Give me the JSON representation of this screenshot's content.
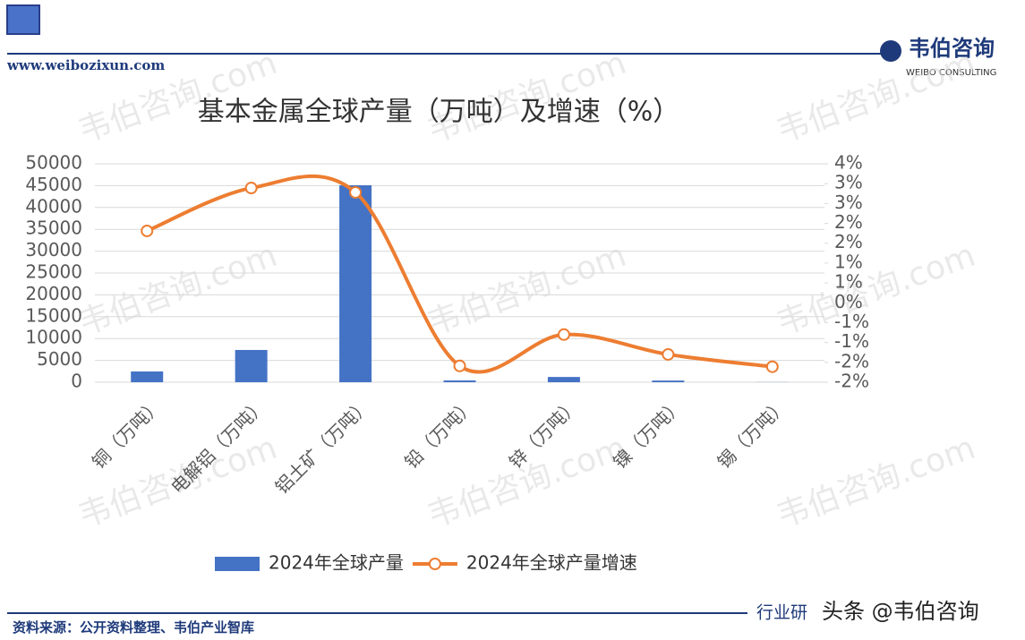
{
  "site": "www.weibozixun.com",
  "brand": {
    "name": "韦伯咨询",
    "sub": "WEIBO CONSULTING"
  },
  "watermark": "韦伯咨询.com",
  "source": "资料来源：公开资料整理、韦伯产业智库",
  "footer_right": "行业研",
  "overlay": "头条 @韦伯咨询",
  "chart_data": {
    "type": "bar",
    "title": "基本金属全球产量（万吨）及增速（%）",
    "categories": [
      "铜（万吨）",
      "电解铝（万吨）",
      "铝土矿（万吨）",
      "铅（万吨）",
      "锌（万吨）",
      "镍（万吨）",
      "锡（万吨）"
    ],
    "series": [
      {
        "name": "2024年全球产量",
        "type": "bar",
        "color": "#4472c4",
        "values": [
          2460,
          7380,
          45080,
          400,
          1200,
          380,
          30
        ]
      },
      {
        "name": "2024年全球产量增速",
        "type": "line",
        "axis": "y2",
        "color": "#ed7d31",
        "values": [
          1.81,
          2.89,
          2.78,
          -1.59,
          -0.8,
          -1.3,
          -1.61
        ]
      }
    ],
    "ylim": [
      0,
      50000
    ],
    "yticks": [
      0,
      5000,
      10000,
      15000,
      20000,
      25000,
      30000,
      35000,
      40000,
      45000,
      50000
    ],
    "y2lim": [
      -2,
      3.5
    ],
    "y2ticks": [
      {
        "value": -2,
        "label": "-2%"
      },
      {
        "value": -1.5,
        "label": "-2%"
      },
      {
        "value": -1,
        "label": "-1%"
      },
      {
        "value": -0.5,
        "label": "-1%"
      },
      {
        "value": 0,
        "label": "0%"
      },
      {
        "value": 0.5,
        "label": "1%"
      },
      {
        "value": 1,
        "label": "1%"
      },
      {
        "value": 1.5,
        "label": "2%"
      },
      {
        "value": 2,
        "label": "2%"
      },
      {
        "value": 2.5,
        "label": "3%"
      },
      {
        "value": 3,
        "label": "3%"
      },
      {
        "value": 3.5,
        "label": "4%"
      }
    ],
    "grid": true,
    "legend": "bottom"
  }
}
